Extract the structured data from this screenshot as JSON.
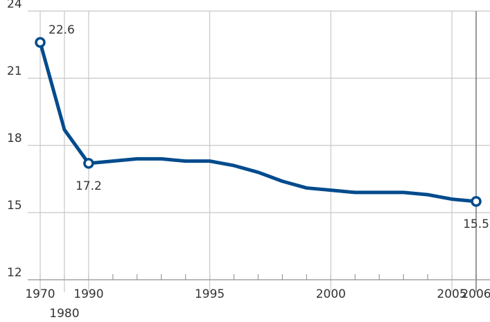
{
  "chart_data": {
    "type": "line",
    "categories": [
      "1970",
      "1980",
      "1990",
      null,
      null,
      null,
      null,
      "1995",
      null,
      null,
      null,
      null,
      "2000",
      null,
      null,
      null,
      null,
      "2005",
      "2006"
    ],
    "series": [
      {
        "color": "#004b8d",
        "values": [
          22.6,
          18.7,
          17.2,
          17.3,
          17.4,
          17.4,
          17.3,
          17.3,
          17.1,
          16.8,
          16.4,
          16.1,
          16.0,
          15.9,
          15.9,
          15.9,
          15.8,
          15.6,
          15.5
        ],
        "value_labels": [
          "22.6",
          null,
          "17.2",
          null,
          null,
          null,
          null,
          null,
          null,
          null,
          null,
          null,
          null,
          null,
          null,
          null,
          null,
          null,
          "15.5"
        ]
      }
    ],
    "ylim": [
      12,
      24
    ],
    "yticks": [
      12,
      15,
      18,
      21,
      24
    ],
    "grid": true
  }
}
